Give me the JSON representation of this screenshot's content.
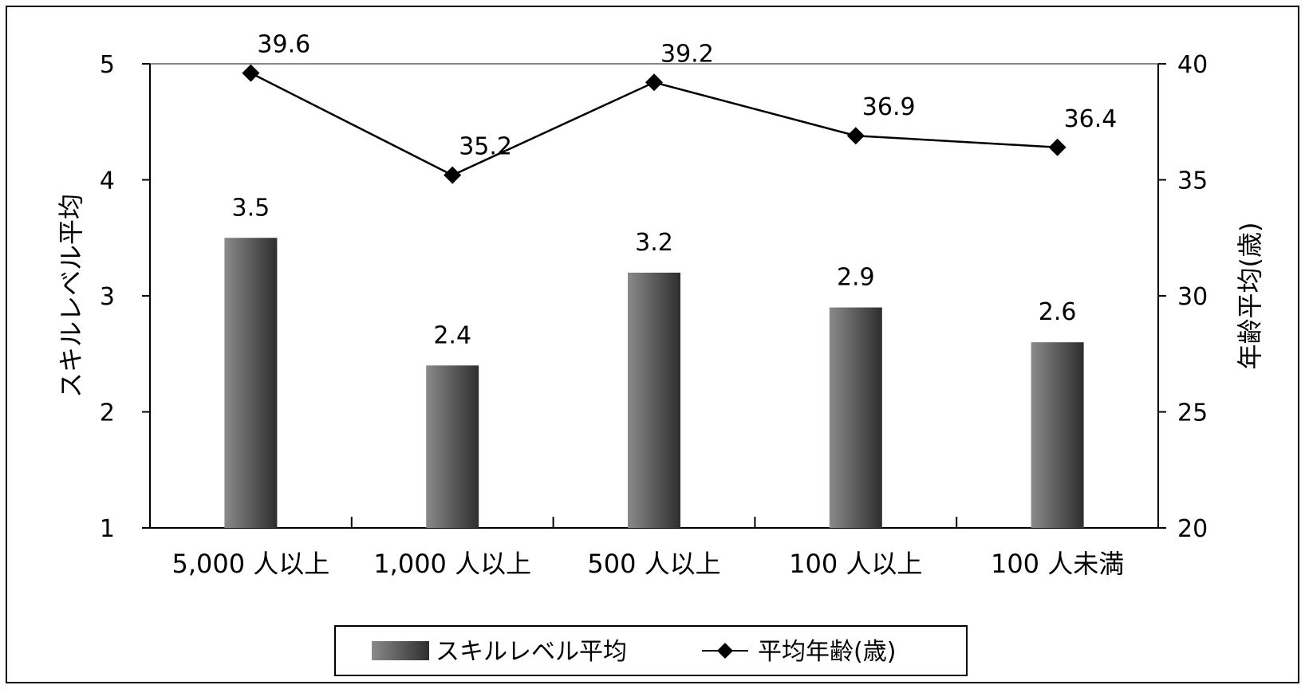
{
  "chart_data": {
    "type": "bar",
    "categories": [
      "5,000 人以上",
      "1,000 人以上",
      "500 人以上",
      "100 人以上",
      "100 人未満"
    ],
    "series": [
      {
        "name": "スキルレベル平均",
        "type": "bar",
        "axis": "left",
        "values": [
          3.5,
          2.4,
          3.2,
          2.9,
          2.6
        ],
        "data_labels": [
          "3.5",
          "2.4",
          "3.2",
          "2.9",
          "2.6"
        ],
        "color": "#4a4a4a"
      },
      {
        "name": "平均年齢(歳)",
        "type": "line",
        "axis": "right",
        "marker": "diamond",
        "values": [
          39.6,
          35.2,
          39.2,
          36.9,
          36.4
        ],
        "data_labels": [
          "39.6",
          "35.2",
          "39.2",
          "36.9",
          "36.4"
        ],
        "color": "#000000"
      }
    ],
    "ylabel": "スキルレベル平均",
    "y2label": "年齢平均(歳)",
    "ylim": [
      1,
      5
    ],
    "y2lim": [
      20,
      40
    ],
    "yticks": [
      "1",
      "2",
      "3",
      "4",
      "5"
    ],
    "y2ticks": [
      "20",
      "25",
      "30",
      "35",
      "40"
    ],
    "grid": false,
    "legend": "bottom-center"
  }
}
